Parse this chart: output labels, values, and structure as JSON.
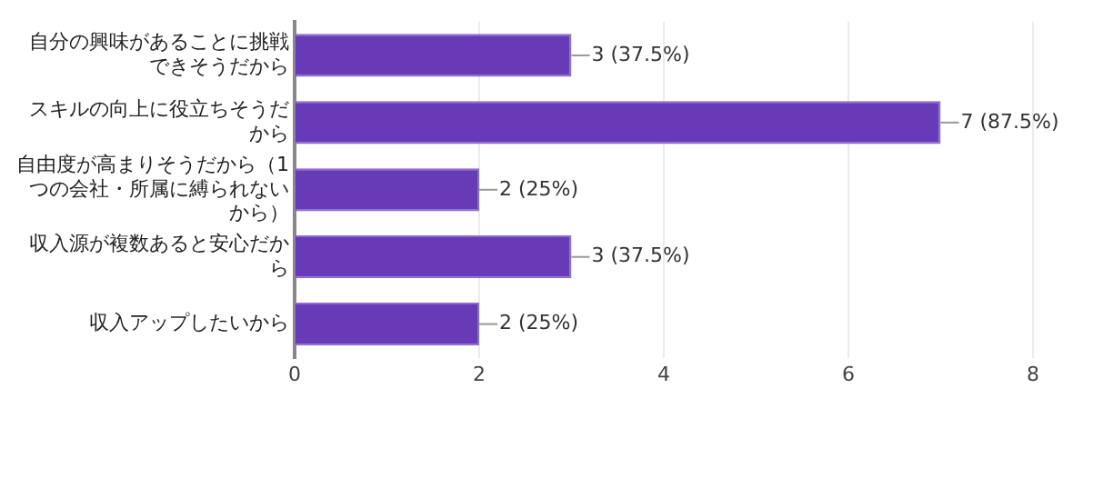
{
  "chart_data": {
    "type": "bar",
    "orientation": "horizontal",
    "categories": [
      "自分の興味があることに挑戦できそうだから",
      "スキルの向上に役立ちそうだから",
      "自由度が高まりそうだから（1つの会社・所属に縛られないから）",
      "収入源が複数あると安心だから",
      "収入アップしたいから"
    ],
    "values": [
      3,
      7,
      2,
      3,
      2
    ],
    "value_labels": [
      "3 (37.5%)",
      "7 (87.5%)",
      "2 (25%)",
      "3 (37.5%)",
      "2 (25%)"
    ],
    "color": "#673ab7",
    "xlim": [
      0,
      8
    ],
    "xticks": [
      0,
      2,
      4,
      6,
      8
    ],
    "grid": "x",
    "legend": false
  }
}
